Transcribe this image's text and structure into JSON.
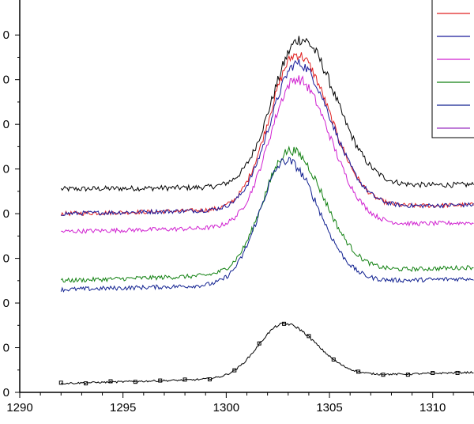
{
  "chart_data": {
    "type": "line",
    "xlim": [
      1290,
      1312
    ],
    "ylim": [
      0,
      8.5
    ],
    "x_ticks": [
      1290,
      1295,
      1300,
      1305,
      1310
    ],
    "x_tick_labels": [
      "1290",
      "1295",
      "1300",
      "1305",
      "1310"
    ],
    "y_tick_labels_visible": [
      "0",
      "0",
      "0",
      "0",
      "0",
      "0",
      "0",
      "0",
      "0"
    ],
    "y_tick_values": [
      0,
      1,
      2,
      3,
      4,
      5,
      6,
      7,
      8
    ],
    "grid": false,
    "legend_placement": "top-right",
    "x_range_data": [
      1292,
      1312
    ],
    "series": [
      {
        "color": "#000000",
        "baseline": 4.55,
        "end_level": 4.65,
        "peak_x": 1303.6,
        "peak_height": 3.3,
        "width": 1.35,
        "noise": 0.06
      },
      {
        "color": "#e02020",
        "baseline": 4.0,
        "end_level": 4.2,
        "peak_x": 1303.4,
        "peak_height": 3.45,
        "width": 1.3,
        "noise": 0.05
      },
      {
        "color": "#1a1a9a",
        "baseline": 4.0,
        "end_level": 4.2,
        "peak_x": 1303.45,
        "peak_height": 3.25,
        "width": 1.3,
        "noise": 0.05
      },
      {
        "color": "#d020d0",
        "baseline": 3.6,
        "end_level": 3.8,
        "peak_x": 1303.4,
        "peak_height": 3.3,
        "width": 1.3,
        "noise": 0.05
      },
      {
        "color": "#108010",
        "baseline": 2.5,
        "end_level": 2.8,
        "peak_x": 1303.1,
        "peak_height": 2.75,
        "width": 1.3,
        "noise": 0.05
      },
      {
        "color": "#102090",
        "baseline": 2.3,
        "end_level": 2.55,
        "peak_x": 1302.9,
        "peak_height": 2.75,
        "width": 1.25,
        "noise": 0.05
      },
      {
        "color": "#000000",
        "baseline": 0.2,
        "end_level": 0.45,
        "peak_x": 1302.8,
        "peak_height": 1.2,
        "width": 1.25,
        "noise": 0.02,
        "markers": true
      }
    ],
    "legend_entries": [
      {
        "color": "#e02020"
      },
      {
        "color": "#1a1a9a"
      },
      {
        "color": "#d020d0"
      },
      {
        "color": "#108010"
      },
      {
        "color": "#102090"
      },
      {
        "color": "#9a30c0"
      }
    ]
  }
}
